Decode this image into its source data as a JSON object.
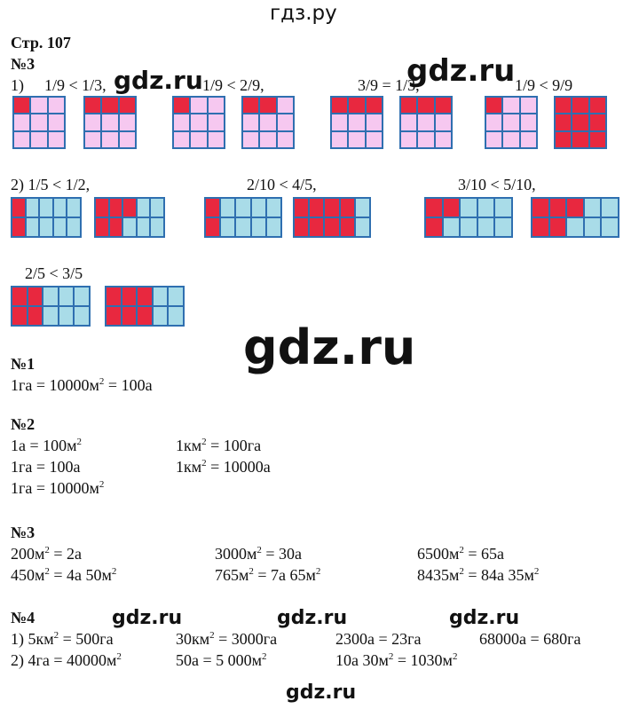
{
  "header": "гдз.ру",
  "page": "Стр. 107",
  "watermark": "gdz.ru",
  "sec3a": {
    "title": "№3",
    "row1_prefix": "1)",
    "cmp": [
      "1/9 < 1/3,",
      "1/9 < 2/9,",
      "3/9 = 1/3,",
      "1/9 < 9/9"
    ],
    "row2": [
      "2) 1/5 < 1/2,",
      "2/10 < 4/5,",
      "3/10 < 5/10,"
    ],
    "row3": "2/5 < 3/5"
  },
  "sec1": {
    "title": "№1",
    "lines": [
      "1га = 10000м",
      "2",
      " = 100а"
    ]
  },
  "sec2": {
    "title": "№2",
    "l1a": "1а = 100м",
    "l1b": "1км",
    "l1b2": " = 100га",
    "l2a": "1га = 100а",
    "l2b": "1км",
    "l2b2": " = 10000а",
    "l3a": "1га = 10000м",
    "sup": "2"
  },
  "sec3b": {
    "title": "№3",
    "a1": "200м",
    "a1b": " = 2а",
    "a2": "3000м",
    "a2b": " = 30а",
    "a3": "6500м",
    "a3b": " = 65а",
    "b1": "450м",
    "b1b": " = 4а 50м",
    "b2": "765м",
    "b2b": " = 7а 65м",
    "b3": "8435м",
    "b3b": " = 84а 35м",
    "sup": "2"
  },
  "sec4": {
    "title": "№4",
    "r1a": "1) 5км",
    "r1a2": " = 500га",
    "r1b": "30км",
    "r1b2": " = 3000га",
    "r1c": "2300а = 23га",
    "r1d": "68000а = 680га",
    "r2a": "2) 4га = 40000м",
    "r2b": "50а = 5 000м",
    "r2c": "10а 30м",
    "r2c2": " = 1030м",
    "sup": "2"
  },
  "colors": {
    "pink": "#f6c8f0",
    "red": "#e8283f",
    "blue": "#a9dce8",
    "gridline": "#2f6fb0"
  }
}
